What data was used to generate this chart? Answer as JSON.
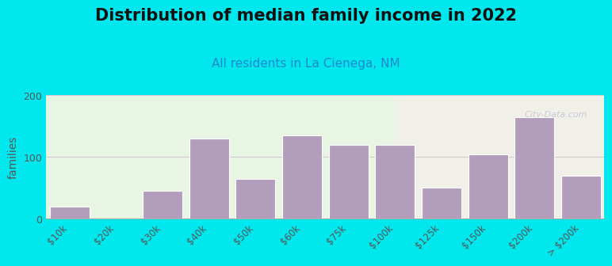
{
  "title": "Distribution of median family income in 2022",
  "subtitle": "All residents in La Cienega, NM",
  "ylabel": "families",
  "categories": [
    "$10k",
    "$20k",
    "$30k",
    "$40k",
    "$50k",
    "$60k",
    "$75k",
    "$100k",
    "$125k",
    "$150k",
    "$200k",
    "> $200k"
  ],
  "values": [
    20,
    0,
    45,
    130,
    65,
    135,
    120,
    120,
    50,
    105,
    165,
    70
  ],
  "bar_color": "#b39dbd",
  "bar_edge_color": "#ffffff",
  "bg_color_left": "#e8f5e2",
  "bg_color_right": "#f0f0e8",
  "outer_bg": "#00e8ee",
  "ylim": [
    0,
    200
  ],
  "yticks": [
    0,
    100,
    200
  ],
  "title_fontsize": 15,
  "subtitle_fontsize": 11,
  "ylabel_fontsize": 10,
  "watermark": "City-Data.com",
  "bg_split": 7.5
}
